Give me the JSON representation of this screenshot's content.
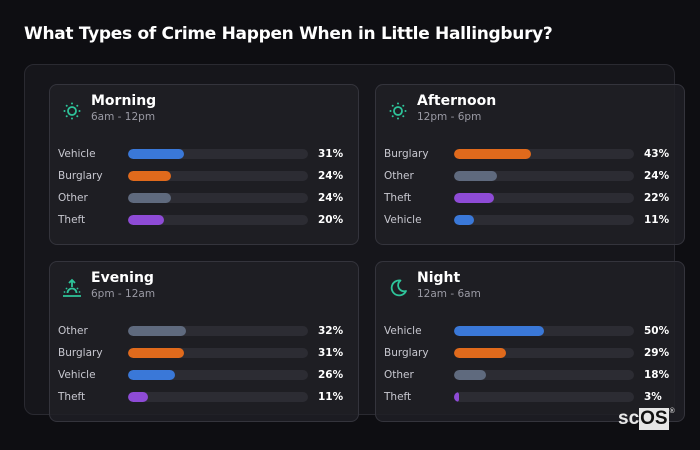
{
  "title": "What Types of Crime Happen When in Little Hallingbury?",
  "colors": {
    "Vehicle": "#3a78d8",
    "Burglary": "#e06a1c",
    "Other": "#5f6a7e",
    "Theft": "#8e4bd6",
    "icon": "#2ec49a"
  },
  "cards": [
    {
      "title": "Morning",
      "subtitle": "6am - 12pm",
      "icon": "sun-icon",
      "rows": [
        {
          "label": "Vehicle",
          "value": 31,
          "display": "31%"
        },
        {
          "label": "Burglary",
          "value": 24,
          "display": "24%"
        },
        {
          "label": "Other",
          "value": 24,
          "display": "24%"
        },
        {
          "label": "Theft",
          "value": 20,
          "display": "20%"
        }
      ]
    },
    {
      "title": "Afternoon",
      "subtitle": "12pm - 6pm",
      "icon": "sun-icon",
      "rows": [
        {
          "label": "Burglary",
          "value": 43,
          "display": "43%"
        },
        {
          "label": "Other",
          "value": 24,
          "display": "24%"
        },
        {
          "label": "Theft",
          "value": 22,
          "display": "22%"
        },
        {
          "label": "Vehicle",
          "value": 11,
          "display": "11%"
        }
      ]
    },
    {
      "title": "Evening",
      "subtitle": "6pm - 12am",
      "icon": "sunset-icon",
      "rows": [
        {
          "label": "Other",
          "value": 32,
          "display": "32%"
        },
        {
          "label": "Burglary",
          "value": 31,
          "display": "31%"
        },
        {
          "label": "Vehicle",
          "value": 26,
          "display": "26%"
        },
        {
          "label": "Theft",
          "value": 11,
          "display": "11%"
        }
      ]
    },
    {
      "title": "Night",
      "subtitle": "12am - 6am",
      "icon": "moon-icon",
      "rows": [
        {
          "label": "Vehicle",
          "value": 50,
          "display": "50%"
        },
        {
          "label": "Burglary",
          "value": 29,
          "display": "29%"
        },
        {
          "label": "Other",
          "value": 18,
          "display": "18%"
        },
        {
          "label": "Theft",
          "value": 3,
          "display": "3%"
        }
      ]
    }
  ],
  "brand": {
    "sc": "sc",
    "os": "OS",
    "reg": "®"
  },
  "chart_data": [
    {
      "type": "bar",
      "title": "Morning",
      "subtitle": "6am - 12pm",
      "orientation": "horizontal",
      "categories": [
        "Vehicle",
        "Burglary",
        "Other",
        "Theft"
      ],
      "values": [
        31,
        24,
        24,
        20
      ],
      "unit": "%",
      "xlim": [
        0,
        100
      ]
    },
    {
      "type": "bar",
      "title": "Afternoon",
      "subtitle": "12pm - 6pm",
      "orientation": "horizontal",
      "categories": [
        "Burglary",
        "Other",
        "Theft",
        "Vehicle"
      ],
      "values": [
        43,
        24,
        22,
        11
      ],
      "unit": "%",
      "xlim": [
        0,
        100
      ]
    },
    {
      "type": "bar",
      "title": "Evening",
      "subtitle": "6pm - 12am",
      "orientation": "horizontal",
      "categories": [
        "Other",
        "Burglary",
        "Vehicle",
        "Theft"
      ],
      "values": [
        32,
        31,
        26,
        11
      ],
      "unit": "%",
      "xlim": [
        0,
        100
      ]
    },
    {
      "type": "bar",
      "title": "Night",
      "subtitle": "12am - 6am",
      "orientation": "horizontal",
      "categories": [
        "Vehicle",
        "Burglary",
        "Other",
        "Theft"
      ],
      "values": [
        50,
        29,
        18,
        3
      ],
      "unit": "%",
      "xlim": [
        0,
        100
      ]
    }
  ]
}
